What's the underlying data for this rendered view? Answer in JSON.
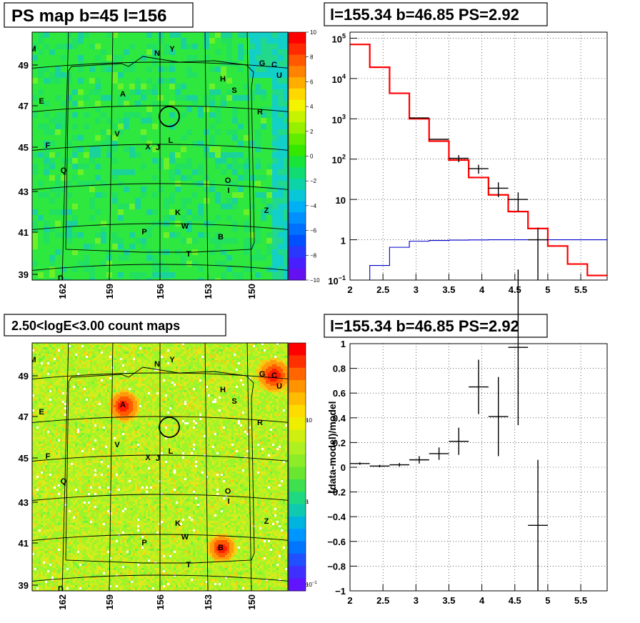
{
  "chart_data": [
    {
      "type": "heatmap",
      "title": "PS map b=45 l=156",
      "x_ticks": [
        "162",
        "159",
        "156",
        "153",
        "150"
      ],
      "y_ticks": [
        "39",
        "41",
        "43",
        "45",
        "47",
        "49"
      ],
      "colorbar": {
        "min": -10,
        "max": 10,
        "ticks": [
          "10",
          "8",
          "6",
          "4",
          "2",
          "0",
          "−2",
          "−4",
          "−6",
          "−8",
          "−10"
        ]
      },
      "source_labels": [
        "M",
        "N",
        "Y",
        "G",
        "C",
        "U",
        "H",
        "S",
        "A",
        "E",
        "R",
        "V",
        "L",
        "X",
        "J",
        "F",
        "Q",
        "O",
        "I",
        "K",
        "Z",
        "P",
        "W",
        "B",
        "T",
        "D"
      ]
    },
    {
      "type": "line",
      "title": "l=155.34 b=46.85 PS=2.92",
      "x_ticks": [
        "2",
        "2.5",
        "3",
        "3.5",
        "4",
        "4.5",
        "5",
        "5.5"
      ],
      "y_ticks": [
        "10^-1",
        "1",
        "10",
        "10^2",
        "10^3",
        "10^4",
        "10^5"
      ],
      "xlim": [
        2,
        5.9
      ],
      "ylim_log10": [
        -1,
        5.15
      ],
      "log_y": true,
      "grid": true,
      "bin_edges": [
        2.0,
        2.3,
        2.6,
        2.9,
        3.2,
        3.5,
        3.8,
        4.1,
        4.4,
        4.7,
        5.0,
        5.3,
        5.6,
        5.9
      ],
      "series": [
        {
          "color": "#ff0000",
          "values": [
            70000,
            19000,
            4300,
            1000,
            280,
            95,
            35,
            13,
            5,
            1.9,
            0.7,
            0.25,
            0.13
          ]
        },
        {
          "color": "#0000cc",
          "values": [
            0.08,
            0.23,
            0.65,
            0.92,
            0.96,
            0.98,
            0.99,
            1.0,
            1.0,
            1.0,
            1.0,
            1.0,
            1.0
          ]
        }
      ],
      "data_points": [
        {
          "x": 3.05,
          "y": 1050,
          "xerr": 0.15
        },
        {
          "x": 3.35,
          "y": 310,
          "xerr": 0.15
        },
        {
          "x": 3.65,
          "y": 105,
          "xerr": 0.15,
          "yerr_frac": 0.2
        },
        {
          "x": 3.95,
          "y": 58,
          "xerr": 0.15,
          "yerr_frac": 0.25
        },
        {
          "x": 4.25,
          "y": 19,
          "xerr": 0.15,
          "yerr_frac": 0.4
        },
        {
          "x": 4.55,
          "y": 10,
          "xerr": 0.15,
          "yerr_frac": 0.5
        },
        {
          "x": 4.85,
          "y": 1.0,
          "xerr": 0.15,
          "yerr_frac": 1.0
        }
      ]
    },
    {
      "type": "heatmap",
      "title": "2.50<logE<3.00 count maps",
      "x_ticks": [
        "162",
        "159",
        "156",
        "153",
        "150"
      ],
      "y_ticks": [
        "39",
        "41",
        "43",
        "45",
        "47",
        "49"
      ],
      "colorbar": {
        "log": true,
        "ticks": [
          "10",
          "1",
          "10^-1"
        ]
      },
      "source_labels": [
        "M",
        "N",
        "Y",
        "G",
        "C",
        "U",
        "H",
        "S",
        "A",
        "E",
        "R",
        "V",
        "L",
        "X",
        "J",
        "F",
        "Q",
        "O",
        "I",
        "K",
        "Z",
        "P",
        "W",
        "B",
        "T",
        "D"
      ]
    },
    {
      "type": "scatter",
      "title": "l=155.34 b=46.85 PS=2.92",
      "ylabel": "(data-model)/model",
      "x_ticks": [
        "2",
        "2.5",
        "3",
        "3.5",
        "4",
        "4.5",
        "5",
        "5.5"
      ],
      "y_ticks": [
        "1",
        "0.8",
        "0.6",
        "0.4",
        "0.2",
        "0",
        "−0.2",
        "−0.4",
        "−0.6",
        "−0.8",
        "−1"
      ],
      "xlim": [
        2,
        5.9
      ],
      "ylim": [
        -1,
        1
      ],
      "grid": true,
      "points": [
        {
          "x": 2.15,
          "y": 0.03,
          "xerr": 0.15,
          "yerr": 0.01
        },
        {
          "x": 2.45,
          "y": 0.01,
          "xerr": 0.15,
          "yerr": 0.01
        },
        {
          "x": 2.75,
          "y": 0.02,
          "xerr": 0.15,
          "yerr": 0.015
        },
        {
          "x": 3.05,
          "y": 0.06,
          "xerr": 0.15,
          "yerr": 0.03
        },
        {
          "x": 3.35,
          "y": 0.11,
          "xerr": 0.15,
          "yerr": 0.05
        },
        {
          "x": 3.65,
          "y": 0.21,
          "xerr": 0.15,
          "yerr": 0.11
        },
        {
          "x": 3.95,
          "y": 0.65,
          "xerr": 0.15,
          "yerr": 0.22
        },
        {
          "x": 4.25,
          "y": 0.41,
          "xerr": 0.15,
          "yerr": 0.32
        },
        {
          "x": 4.55,
          "y": 0.97,
          "xerr": 0.15,
          "yerr": 0.63
        },
        {
          "x": 4.85,
          "y": -0.47,
          "xerr": 0.15,
          "yerr": 0.53
        }
      ]
    }
  ]
}
